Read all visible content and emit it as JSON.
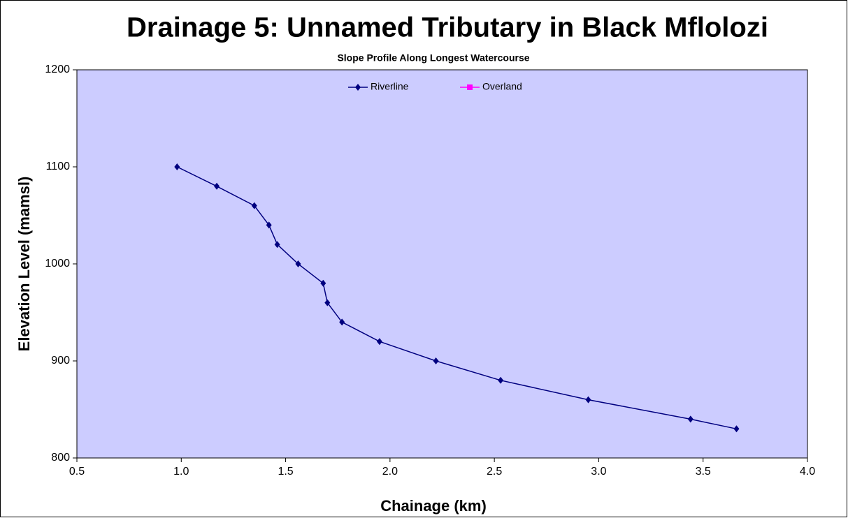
{
  "chart_data": {
    "type": "line",
    "title": "Drainage 5: Unnamed Tributary in Black Mflolozi",
    "subtitle": "Slope Profile Along Longest Watercourse",
    "x_label": "Chainage (km)",
    "y_label": "Elevation Level  (mamsl)",
    "series": [
      {
        "name": "Riverline",
        "color": "#000080",
        "marker": "diamond",
        "x": [
          0.98,
          1.17,
          1.35,
          1.42,
          1.46,
          1.56,
          1.68,
          1.7,
          1.77,
          1.95,
          2.22,
          2.53,
          2.95,
          3.44,
          3.66
        ],
        "values": [
          1100,
          1080,
          1060,
          1040,
          1020,
          1000,
          980,
          960,
          940,
          920,
          900,
          880,
          860,
          840,
          830
        ]
      },
      {
        "name": "Overland",
        "color": "#ff00ff",
        "marker": "square",
        "x": [],
        "values": []
      }
    ],
    "xlim": [
      0.5,
      4.0
    ],
    "xticks": [
      0.5,
      {
        "value": 1,
        "label": "1.0"
      },
      1.5,
      {
        "value": 2,
        "label": "2.0"
      },
      2.5,
      {
        "value": 3,
        "label": "3.0"
      },
      3.5,
      {
        "value": 4,
        "label": "4.0"
      }
    ],
    "ylim": [
      800,
      1200
    ],
    "yticks": [
      800,
      900,
      1000,
      1100,
      1200
    ],
    "plot_background": "#ccccff",
    "legend": "top"
  }
}
